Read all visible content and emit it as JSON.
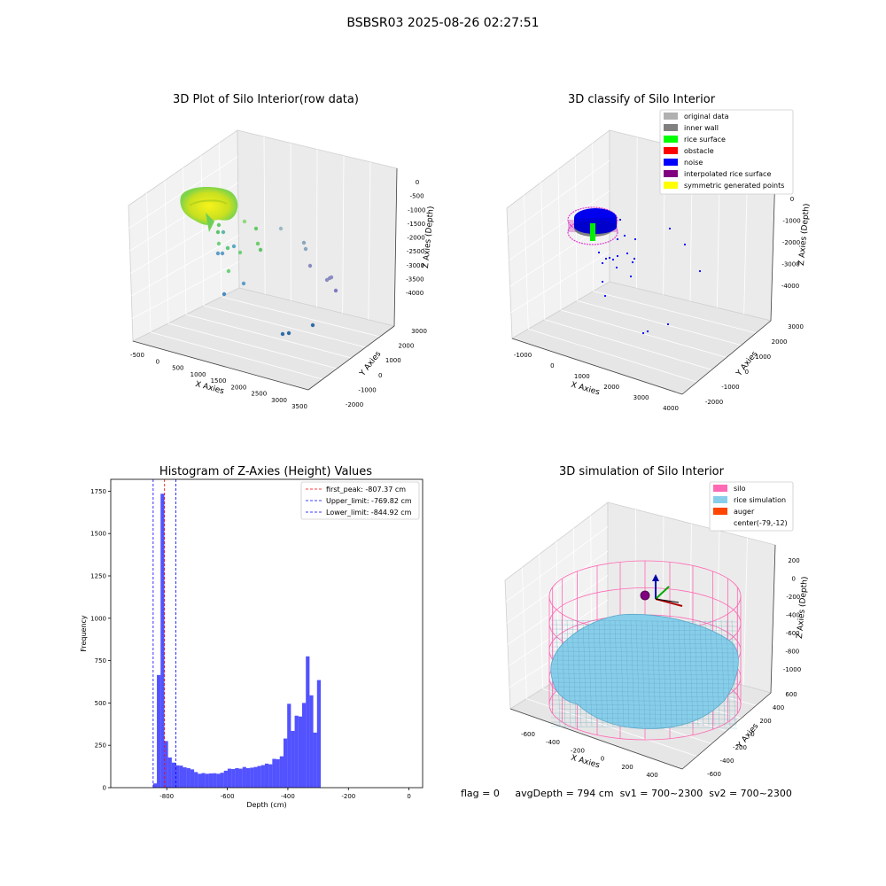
{
  "figure": {
    "suptitle": "BSBSR03 2025-08-26 02:27:51",
    "footer": {
      "flag": "flag = 0",
      "avg_depth": "avgDepth = 794 cm",
      "sv1": "sv1 = 700~2300",
      "sv2": "sv2 = 700~2300"
    }
  },
  "chart_data": [
    {
      "type": "scatter",
      "title": "3D Plot of Silo Interior(row data)",
      "xlabel": "X Axies",
      "ylabel": "Y Axies",
      "zlabel": "Z Axies (Depth)",
      "xticks": [
        "-500",
        "0",
        "500",
        "1000",
        "1500",
        "2000",
        "2500",
        "3000",
        "3500"
      ],
      "yticks": [
        "-2000",
        "-1000",
        "0",
        "1000",
        "2000",
        "3000"
      ],
      "zticks": [
        "0",
        "-500",
        "-1000",
        "-1500",
        "-2000",
        "-2500",
        "-3000",
        "-3500",
        "-4000"
      ],
      "xlim": [
        -700,
        3600
      ],
      "ylim": [
        -2200,
        3300
      ],
      "zlim": [
        -4300,
        200
      ],
      "colormap": "viridis",
      "note_points": "dense yellow-green surface cluster near top plus scattered points",
      "grid": true
    },
    {
      "type": "scatter",
      "title": "3D classify of Silo Interior",
      "xlabel": "X Axies",
      "ylabel": "Y Axies",
      "zlabel": "Z Axies (Depth)",
      "xticks": [
        "-1000",
        "0",
        "1000",
        "2000",
        "3000",
        "4000"
      ],
      "yticks": [
        "-2000",
        "-1000",
        "0",
        "1000",
        "2000",
        "3000"
      ],
      "zticks": [
        "0",
        "-1000",
        "-2000",
        "-3000",
        "-4000"
      ],
      "legend_position": "top-right",
      "legend": [
        {
          "label": "original data",
          "color": "#b0b0b0"
        },
        {
          "label": "inner wall",
          "color": "#808080"
        },
        {
          "label": "rice surface",
          "color": "#00ff00"
        },
        {
          "label": "obstacle",
          "color": "#ff0000"
        },
        {
          "label": "noise",
          "color": "#0000ff"
        },
        {
          "label": "interpolated rice surface",
          "color": "#800080"
        },
        {
          "label": "symmetric generated points",
          "color": "#ffff00"
        }
      ],
      "grid": true
    },
    {
      "type": "bar",
      "title": "Histogram of Z-Axies (Height) Values",
      "xlabel": "Depth (cm)",
      "ylabel": "Frequency",
      "xlim": [
        -985,
        45
      ],
      "ylim": [
        0,
        1820
      ],
      "xticks": [
        -800,
        -600,
        -400,
        -200,
        0
      ],
      "yticks": [
        0,
        250,
        500,
        750,
        1000,
        1250,
        1500,
        1750
      ],
      "bin_start": -845,
      "bin_width": 12.3,
      "bar_color": "#0000ff",
      "bin_values": [
        25,
        665,
        1735,
        275,
        178,
        148,
        132,
        130,
        120,
        115,
        108,
        92,
        82,
        86,
        82,
        84,
        85,
        82,
        88,
        100,
        112,
        110,
        115,
        112,
        122,
        115,
        118,
        122,
        128,
        133,
        142,
        138,
        170,
        168,
        185,
        290,
        495,
        335,
        425,
        420,
        500,
        775,
        545,
        325,
        635
      ],
      "vlines": [
        {
          "label": "first_peak: -807.37 cm",
          "value": -807.37,
          "color": "#ff0000",
          "style": "dashed"
        },
        {
          "label": "Upper_limit: -769.82 cm",
          "value": -769.82,
          "color": "#0000ff",
          "style": "dashed"
        },
        {
          "label": "Lower_limit: -844.92 cm",
          "value": -844.92,
          "color": "#0000ff",
          "style": "dashed"
        }
      ],
      "legend_position": "top-right",
      "grid": false
    },
    {
      "type": "scatter",
      "title": "3D simulation of Silo Interior",
      "xlabel": "X Axies",
      "ylabel": "Y Axies",
      "zlabel": "Z Axies (Depth)",
      "xticks": [
        "-600",
        "-400",
        "-200",
        "0",
        "200",
        "400"
      ],
      "yticks": [
        "-600",
        "-400",
        "-200",
        "0",
        "200",
        "400",
        "600"
      ],
      "zticks": [
        "200",
        "0",
        "-200",
        "-400",
        "-600",
        "-800",
        "-1000"
      ],
      "legend_position": "top-right",
      "legend": [
        {
          "label": "silo",
          "color": "#ff69b4"
        },
        {
          "label": "rice simulation",
          "color": "#87ceeb"
        },
        {
          "label": "auger",
          "color": "#ff4500"
        },
        {
          "label": "center(-79,-12)",
          "color": "#ffffff"
        }
      ],
      "grid": true
    }
  ]
}
